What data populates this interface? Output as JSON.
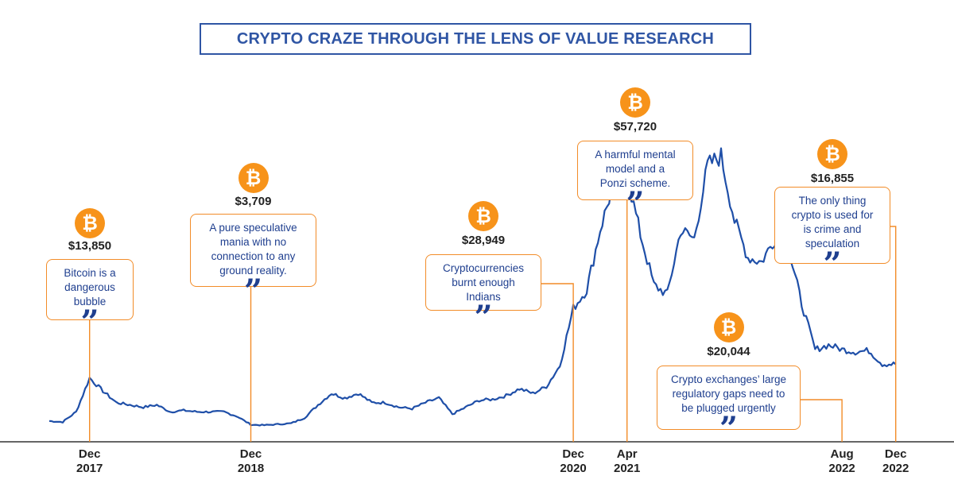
{
  "colors": {
    "line": "#1f4fa8",
    "accent": "#f28c28",
    "coin": "#f7931a",
    "text": "#1f3f8f"
  },
  "title": "CRYPTO CRAZE THROUGH THE LENS OF VALUE RESEARCH",
  "coin_symbol": "₿",
  "quote_symbol": "”",
  "chart_data": {
    "type": "line",
    "title": "CRYPTO CRAZE THROUGH THE LENS OF VALUE RESEARCH",
    "series": [
      {
        "name": "Bitcoin price (approx. USD)",
        "x": [
          "Sep 2017",
          "Oct 2017",
          "Nov 2017",
          "Dec 2017",
          "Jan 2018",
          "Feb 2018",
          "Mar 2018",
          "Apr 2018",
          "May 2018",
          "Jun 2018",
          "Jul 2018",
          "Aug 2018",
          "Sep 2018",
          "Oct 2018",
          "Nov 2018",
          "Dec 2018",
          "Jan 2019",
          "Feb 2019",
          "Mar 2019",
          "Apr 2019",
          "May 2019",
          "Jun 2019",
          "Jul 2019",
          "Aug 2019",
          "Sep 2019",
          "Oct 2019",
          "Nov 2019",
          "Dec 2019",
          "Jan 2020",
          "Feb 2020",
          "Mar 2020",
          "Apr 2020",
          "May 2020",
          "Jun 2020",
          "Jul 2020",
          "Aug 2020",
          "Sep 2020",
          "Oct 2020",
          "Nov 2020",
          "Dec 2020",
          "Jan 2021",
          "Feb 2021",
          "Mar 2021",
          "Apr 2021",
          "May 2021",
          "Jun 2021",
          "Jul 2021",
          "Aug 2021",
          "Sep 2021",
          "Oct 2021",
          "Nov 2021",
          "Dec 2021",
          "Jan 2022",
          "Feb 2022",
          "Mar 2022",
          "Apr 2022",
          "May 2022",
          "Jun 2022",
          "Jul 2022",
          "Aug 2022",
          "Sep 2022",
          "Oct 2022",
          "Nov 2022",
          "Dec 2022"
        ],
        "values": [
          4500,
          4300,
          6500,
          13850,
          11000,
          8500,
          8000,
          7500,
          8000,
          6500,
          6800,
          6500,
          6500,
          6500,
          5500,
          3709,
          3600,
          3800,
          4000,
          5200,
          8000,
          10500,
          9500,
          10500,
          8500,
          8500,
          7500,
          7200,
          8500,
          9500,
          6000,
          7500,
          9000,
          9200,
          10000,
          11500,
          10500,
          12000,
          16500,
          28949,
          33000,
          46000,
          56000,
          57720,
          45000,
          34000,
          32000,
          46000,
          44000,
          60000,
          62000,
          48000,
          40000,
          39000,
          44000,
          42000,
          30000,
          20000,
          21000,
          20044,
          19500,
          19800,
          16855,
          16855
        ]
      }
    ],
    "xlabel": "",
    "ylabel": "",
    "ylim": [
      0,
      70000
    ],
    "ticks": [
      {
        "month": "Dec",
        "year": "2017",
        "x": "Dec 2017"
      },
      {
        "month": "Dec",
        "year": "2018",
        "x": "Dec 2018"
      },
      {
        "month": "Dec",
        "year": "2020",
        "x": "Dec 2020"
      },
      {
        "month": "Apr",
        "year": "2021",
        "x": "Apr 2021"
      },
      {
        "month": "Aug",
        "year": "2022",
        "x": "Aug 2022"
      },
      {
        "month": "Dec",
        "year": "2022",
        "x": "Dec 2022"
      }
    ],
    "annotations": [
      {
        "x": "Dec 2017",
        "price": "$13,850",
        "quote_lines": [
          "Bitcoin is a",
          "dangerous",
          "bubble"
        ]
      },
      {
        "x": "Dec 2018",
        "price": "$3,709",
        "quote_lines": [
          "A pure speculative",
          "mania with no",
          "connection to any",
          "ground reality."
        ]
      },
      {
        "x": "Dec 2020",
        "price": "$28,949",
        "quote_lines": [
          "Cryptocurrencies",
          "burnt enough",
          "Indians"
        ]
      },
      {
        "x": "Apr 2021",
        "price": "$57,720",
        "quote_lines": [
          "A harmful mental",
          "model and a",
          "Ponzi scheme."
        ]
      },
      {
        "x": "Aug 2022",
        "price": "$20,044",
        "quote_lines": [
          "Crypto exchanges’ large",
          "regulatory gaps need to",
          "be plugged urgently"
        ]
      },
      {
        "x": "Dec 2022",
        "price": "$16,855",
        "quote_lines": [
          "The only thing",
          "crypto is used for",
          "is crime and",
          "speculation"
        ]
      }
    ]
  }
}
